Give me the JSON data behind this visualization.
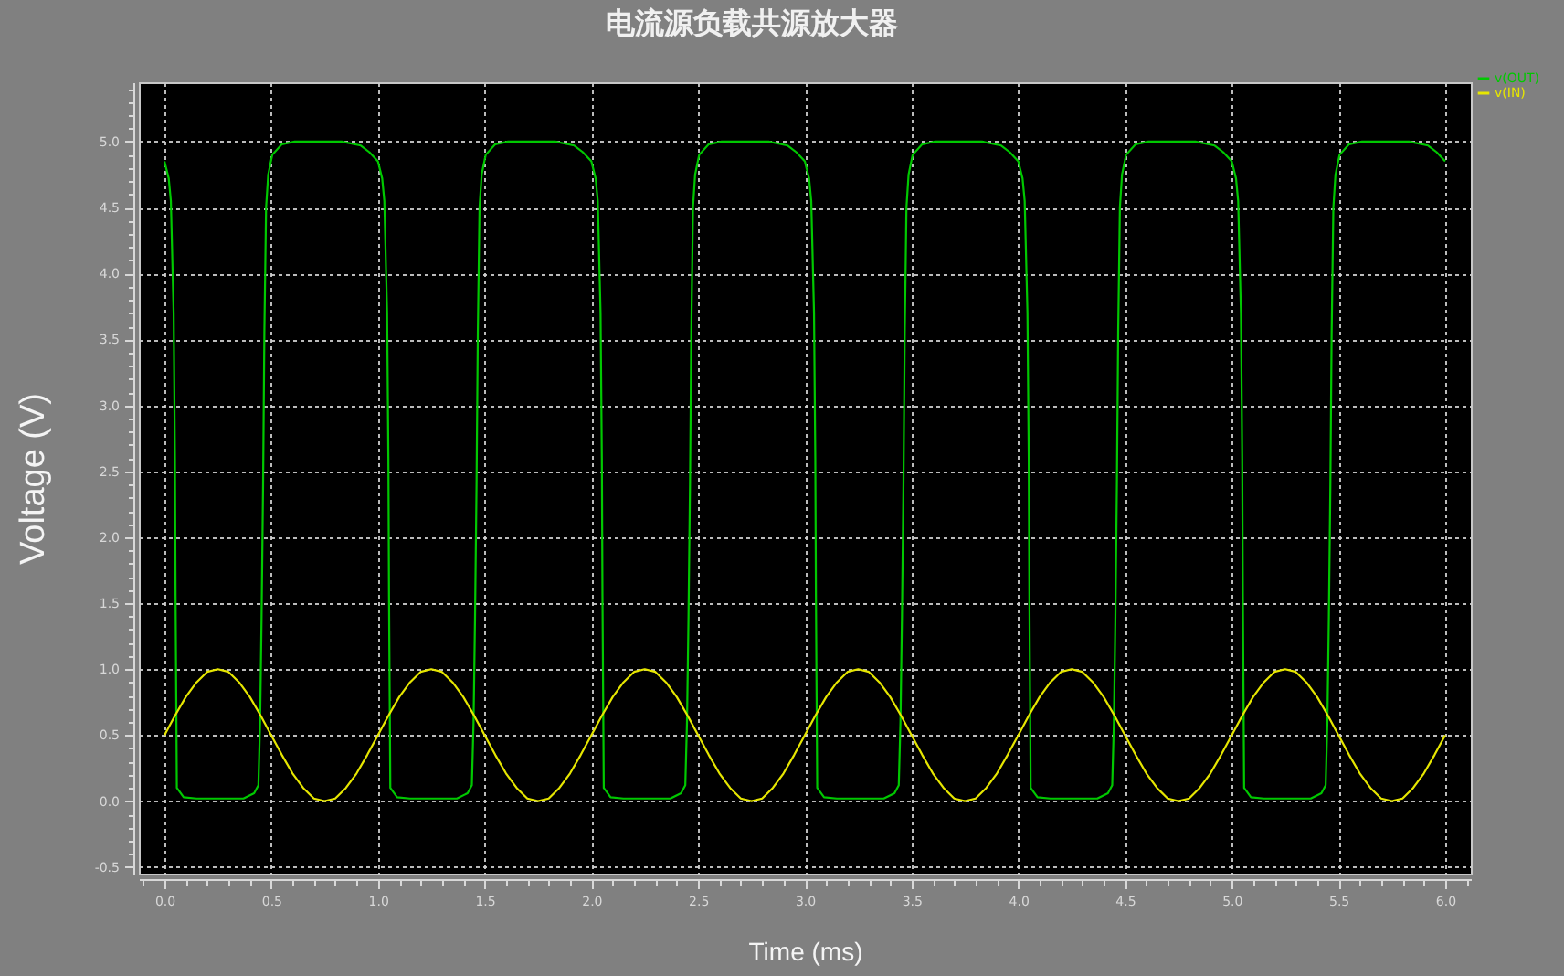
{
  "chart_data": {
    "type": "line",
    "title": "电流源负载共源放大器",
    "xlabel": "Time (ms)",
    "ylabel": "Voltage (V)",
    "xlim": [
      -0.12,
      6.12
    ],
    "ylim": [
      -0.55,
      5.45
    ],
    "xticks": [
      {
        "value": -0.1,
        "label": null
      },
      {
        "value": 0,
        "label": "0.0"
      },
      {
        "value": 0.1,
        "label": null
      },
      {
        "value": 0.2,
        "label": null
      },
      {
        "value": 0.3,
        "label": null
      },
      {
        "value": 0.4,
        "label": null
      },
      {
        "value": 0.5,
        "label": "0.5"
      },
      {
        "value": 0.6,
        "label": null
      },
      {
        "value": 0.7,
        "label": null
      },
      {
        "value": 0.8,
        "label": null
      },
      {
        "value": 0.9,
        "label": null
      },
      {
        "value": 1,
        "label": "1.0"
      },
      {
        "value": 1.1,
        "label": null
      },
      {
        "value": 1.2,
        "label": null
      },
      {
        "value": 1.3,
        "label": null
      },
      {
        "value": 1.4,
        "label": null
      },
      {
        "value": 1.5,
        "label": "1.5"
      },
      {
        "value": 1.6,
        "label": null
      },
      {
        "value": 1.7,
        "label": null
      },
      {
        "value": 1.8,
        "label": null
      },
      {
        "value": 1.9,
        "label": null
      },
      {
        "value": 2,
        "label": "2.0"
      },
      {
        "value": 2.1,
        "label": null
      },
      {
        "value": 2.2,
        "label": null
      },
      {
        "value": 2.3,
        "label": null
      },
      {
        "value": 2.4,
        "label": null
      },
      {
        "value": 2.5,
        "label": "2.5"
      },
      {
        "value": 2.6,
        "label": null
      },
      {
        "value": 2.7,
        "label": null
      },
      {
        "value": 2.8,
        "label": null
      },
      {
        "value": 2.9,
        "label": null
      },
      {
        "value": 3,
        "label": "3.0"
      },
      {
        "value": 3.1,
        "label": null
      },
      {
        "value": 3.2,
        "label": null
      },
      {
        "value": 3.3,
        "label": null
      },
      {
        "value": 3.4,
        "label": null
      },
      {
        "value": 3.5,
        "label": "3.5"
      },
      {
        "value": 3.6,
        "label": null
      },
      {
        "value": 3.7,
        "label": null
      },
      {
        "value": 3.8,
        "label": null
      },
      {
        "value": 3.9,
        "label": null
      },
      {
        "value": 4,
        "label": "4.0"
      },
      {
        "value": 4.1,
        "label": null
      },
      {
        "value": 4.2,
        "label": null
      },
      {
        "value": 4.3,
        "label": null
      },
      {
        "value": 4.4,
        "label": null
      },
      {
        "value": 4.5,
        "label": "4.5"
      },
      {
        "value": 4.6,
        "label": null
      },
      {
        "value": 4.7,
        "label": null
      },
      {
        "value": 4.8,
        "label": null
      },
      {
        "value": 4.9,
        "label": null
      },
      {
        "value": 5,
        "label": "5.0"
      },
      {
        "value": 5.1,
        "label": null
      },
      {
        "value": 5.2,
        "label": null
      },
      {
        "value": 5.3,
        "label": null
      },
      {
        "value": 5.4,
        "label": null
      },
      {
        "value": 5.5,
        "label": "5.5"
      },
      {
        "value": 5.6,
        "label": null
      },
      {
        "value": 5.7,
        "label": null
      },
      {
        "value": 5.8,
        "label": null
      },
      {
        "value": 5.9,
        "label": null
      },
      {
        "value": 6,
        "label": "6.0"
      },
      {
        "value": 6.1,
        "label": null
      }
    ],
    "yticks": [
      {
        "value": -0.5,
        "label": "-0.5"
      },
      {
        "value": -0.4,
        "label": null
      },
      {
        "value": -0.3,
        "label": null
      },
      {
        "value": -0.2,
        "label": null
      },
      {
        "value": -0.1,
        "label": null
      },
      {
        "value": 0,
        "label": "0.0"
      },
      {
        "value": 0.1,
        "label": null
      },
      {
        "value": 0.2,
        "label": null
      },
      {
        "value": 0.3,
        "label": null
      },
      {
        "value": 0.4,
        "label": null
      },
      {
        "value": 0.5,
        "label": "0.5"
      },
      {
        "value": 0.6,
        "label": null
      },
      {
        "value": 0.7,
        "label": null
      },
      {
        "value": 0.8,
        "label": null
      },
      {
        "value": 0.9,
        "label": null
      },
      {
        "value": 1,
        "label": "1.0"
      },
      {
        "value": 1.1,
        "label": null
      },
      {
        "value": 1.2,
        "label": null
      },
      {
        "value": 1.3,
        "label": null
      },
      {
        "value": 1.4,
        "label": null
      },
      {
        "value": 1.5,
        "label": "1.5"
      },
      {
        "value": 1.6,
        "label": null
      },
      {
        "value": 1.7,
        "label": null
      },
      {
        "value": 1.8,
        "label": null
      },
      {
        "value": 1.9,
        "label": null
      },
      {
        "value": 2,
        "label": "2.0"
      },
      {
        "value": 2.1,
        "label": null
      },
      {
        "value": 2.2,
        "label": null
      },
      {
        "value": 2.3,
        "label": null
      },
      {
        "value": 2.4,
        "label": null
      },
      {
        "value": 2.5,
        "label": "2.5"
      },
      {
        "value": 2.6,
        "label": null
      },
      {
        "value": 2.7,
        "label": null
      },
      {
        "value": 2.8,
        "label": null
      },
      {
        "value": 2.9,
        "label": null
      },
      {
        "value": 3,
        "label": "3.0"
      },
      {
        "value": 3.1,
        "label": null
      },
      {
        "value": 3.2,
        "label": null
      },
      {
        "value": 3.3,
        "label": null
      },
      {
        "value": 3.4,
        "label": null
      },
      {
        "value": 3.5,
        "label": "3.5"
      },
      {
        "value": 3.6,
        "label": null
      },
      {
        "value": 3.7,
        "label": null
      },
      {
        "value": 3.8,
        "label": null
      },
      {
        "value": 3.9,
        "label": null
      },
      {
        "value": 4,
        "label": "4.0"
      },
      {
        "value": 4.1,
        "label": null
      },
      {
        "value": 4.2,
        "label": null
      },
      {
        "value": 4.3,
        "label": null
      },
      {
        "value": 4.4,
        "label": null
      },
      {
        "value": 4.5,
        "label": "4.5"
      },
      {
        "value": 4.6,
        "label": null
      },
      {
        "value": 4.7,
        "label": null
      },
      {
        "value": 4.8,
        "label": null
      },
      {
        "value": 4.9,
        "label": null
      },
      {
        "value": 5,
        "label": "5.0"
      },
      {
        "value": 5.1,
        "label": null
      },
      {
        "value": 5.2,
        "label": null
      },
      {
        "value": 5.3,
        "label": null
      },
      {
        "value": 5.4,
        "label": null
      }
    ],
    "grid": true,
    "legend": "top right",
    "line_style": "solid",
    "series": [
      {
        "name": "v(OUT)",
        "color": "#00c800",
        "x": [
          0,
          0.02,
          0.03,
          0.043,
          0.049,
          0.052,
          0.058,
          0.09,
          0.15,
          0.37,
          0.42,
          0.44,
          0.448,
          0.455,
          0.462,
          0.468,
          0.476,
          0.486,
          0.505,
          0.55,
          0.61,
          0.83,
          0.92,
          0.96,
          1,
          1.02,
          1.03,
          1.043,
          1.049,
          1.052,
          1.058,
          1.09,
          1.15,
          1.37,
          1.42,
          1.44,
          1.448,
          1.455,
          1.462,
          1.468,
          1.476,
          1.486,
          1.505,
          1.55,
          1.61,
          1.83,
          1.92,
          1.96,
          2,
          2.02,
          2.03,
          2.043,
          2.049,
          2.052,
          2.058,
          2.09,
          2.15,
          2.37,
          2.42,
          2.44,
          2.448,
          2.455,
          2.462,
          2.468,
          2.476,
          2.486,
          2.505,
          2.55,
          2.61,
          2.83,
          2.92,
          2.96,
          3,
          3.02,
          3.03,
          3.043,
          3.049,
          3.052,
          3.058,
          3.09,
          3.15,
          3.37,
          3.42,
          3.44,
          3.448,
          3.455,
          3.462,
          3.468,
          3.476,
          3.486,
          3.505,
          3.55,
          3.61,
          3.83,
          3.92,
          3.96,
          4,
          4.02,
          4.03,
          4.043,
          4.049,
          4.052,
          4.058,
          4.09,
          4.15,
          4.37,
          4.42,
          4.44,
          4.448,
          4.455,
          4.462,
          4.468,
          4.476,
          4.486,
          4.505,
          4.55,
          4.61,
          4.83,
          4.92,
          4.96,
          5,
          5.02,
          5.03,
          5.043,
          5.049,
          5.052,
          5.058,
          5.09,
          5.15,
          5.37,
          5.42,
          5.44,
          5.448,
          5.455,
          5.462,
          5.468,
          5.476,
          5.486,
          5.505,
          5.55,
          5.61,
          5.83,
          5.92,
          5.96,
          6
        ],
        "values": [
          4.85,
          4.72,
          4.55,
          3.7,
          2.6,
          1.55,
          0.1,
          0.03,
          0.02,
          0.02,
          0.06,
          0.12,
          0.6,
          1.4,
          2.4,
          3.55,
          4.5,
          4.75,
          4.9,
          4.98,
          5.0,
          5.0,
          4.97,
          4.92,
          4.85,
          4.72,
          4.55,
          3.7,
          2.6,
          1.55,
          0.1,
          0.03,
          0.02,
          0.02,
          0.06,
          0.12,
          0.6,
          1.4,
          2.4,
          3.55,
          4.5,
          4.75,
          4.9,
          4.98,
          5.0,
          5.0,
          4.97,
          4.92,
          4.85,
          4.72,
          4.55,
          3.7,
          2.6,
          1.55,
          0.1,
          0.03,
          0.02,
          0.02,
          0.06,
          0.12,
          0.6,
          1.4,
          2.4,
          3.55,
          4.5,
          4.75,
          4.9,
          4.98,
          5.0,
          5.0,
          4.97,
          4.92,
          4.85,
          4.72,
          4.55,
          3.7,
          2.6,
          1.55,
          0.1,
          0.03,
          0.02,
          0.02,
          0.06,
          0.12,
          0.6,
          1.4,
          2.4,
          3.55,
          4.5,
          4.75,
          4.9,
          4.98,
          5.0,
          5.0,
          4.97,
          4.92,
          4.85,
          4.72,
          4.55,
          3.7,
          2.6,
          1.55,
          0.1,
          0.03,
          0.02,
          0.02,
          0.06,
          0.12,
          0.6,
          1.4,
          2.4,
          3.55,
          4.5,
          4.75,
          4.9,
          4.98,
          5.0,
          5.0,
          4.97,
          4.92,
          4.85,
          4.72,
          4.55,
          3.7,
          2.6,
          1.55,
          0.1,
          0.03,
          0.02,
          0.02,
          0.06,
          0.12,
          0.6,
          1.4,
          2.4,
          3.55,
          4.5,
          4.75,
          4.9,
          4.98,
          5.0,
          5.0,
          4.97,
          4.92,
          4.85
        ]
      },
      {
        "name": "v(IN)",
        "color": "#e6e600",
        "x": [
          0,
          0.05,
          0.1,
          0.15,
          0.2,
          0.25,
          0.3,
          0.35,
          0.4,
          0.45,
          0.5,
          0.55,
          0.6,
          0.65,
          0.7,
          0.75,
          0.8,
          0.85,
          0.9,
          0.95,
          1,
          1.05,
          1.1,
          1.15,
          1.2,
          1.25,
          1.3,
          1.35,
          1.4,
          1.45,
          1.5,
          1.55,
          1.6,
          1.65,
          1.7,
          1.75,
          1.8,
          1.85,
          1.9,
          1.95,
          2,
          2.05,
          2.1,
          2.15,
          2.2,
          2.25,
          2.3,
          2.35,
          2.4,
          2.45,
          2.5,
          2.55,
          2.6,
          2.65,
          2.7,
          2.75,
          2.8,
          2.85,
          2.9,
          2.95,
          3,
          3.05,
          3.1,
          3.15,
          3.2,
          3.25,
          3.3,
          3.35,
          3.4,
          3.45,
          3.5,
          3.55,
          3.6,
          3.65,
          3.7,
          3.75,
          3.8,
          3.85,
          3.9,
          3.95,
          4,
          4.05,
          4.1,
          4.15,
          4.2,
          4.25,
          4.3,
          4.35,
          4.4,
          4.45,
          4.5,
          4.55,
          4.6,
          4.65,
          4.7,
          4.75,
          4.8,
          4.85,
          4.9,
          4.95,
          5,
          5.05,
          5.1,
          5.15,
          5.2,
          5.25,
          5.3,
          5.35,
          5.4,
          5.45,
          5.5,
          5.55,
          5.6,
          5.65,
          5.7,
          5.75,
          5.8,
          5.85,
          5.9,
          5.95,
          6
        ],
        "values": [
          0.5,
          0.65,
          0.79,
          0.9,
          0.98,
          1.0,
          0.98,
          0.9,
          0.79,
          0.65,
          0.5,
          0.35,
          0.21,
          0.1,
          0.02,
          0.0,
          0.02,
          0.1,
          0.21,
          0.35,
          0.5,
          0.65,
          0.79,
          0.9,
          0.98,
          1.0,
          0.98,
          0.9,
          0.79,
          0.65,
          0.5,
          0.35,
          0.21,
          0.1,
          0.02,
          0.0,
          0.02,
          0.1,
          0.21,
          0.35,
          0.5,
          0.65,
          0.79,
          0.9,
          0.98,
          1.0,
          0.98,
          0.9,
          0.79,
          0.65,
          0.5,
          0.35,
          0.21,
          0.1,
          0.02,
          0.0,
          0.02,
          0.1,
          0.21,
          0.35,
          0.5,
          0.65,
          0.79,
          0.9,
          0.98,
          1.0,
          0.98,
          0.9,
          0.79,
          0.65,
          0.5,
          0.35,
          0.21,
          0.1,
          0.02,
          0.0,
          0.02,
          0.1,
          0.21,
          0.35,
          0.5,
          0.65,
          0.79,
          0.9,
          0.98,
          1.0,
          0.98,
          0.9,
          0.79,
          0.65,
          0.5,
          0.35,
          0.21,
          0.1,
          0.02,
          0.0,
          0.02,
          0.1,
          0.21,
          0.35,
          0.5,
          0.65,
          0.79,
          0.9,
          0.98,
          1.0,
          0.98,
          0.9,
          0.79,
          0.65,
          0.5,
          0.35,
          0.21,
          0.1,
          0.02,
          0.0,
          0.02,
          0.1,
          0.21,
          0.35,
          0.5
        ]
      }
    ]
  }
}
